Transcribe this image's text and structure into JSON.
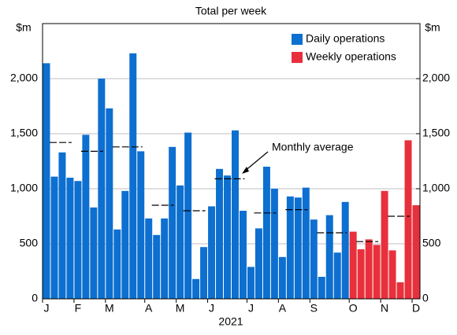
{
  "chart_data": {
    "type": "bar",
    "subtitle": "Total per week",
    "y_unit": "$m",
    "y2_unit": "$m",
    "x_label": "2021",
    "categories": [
      "J",
      null,
      null,
      null,
      "F",
      null,
      null,
      null,
      "M",
      null,
      null,
      null,
      null,
      "A",
      null,
      null,
      null,
      "M",
      null,
      null,
      null,
      "J",
      null,
      null,
      null,
      null,
      "J",
      null,
      null,
      null,
      "A",
      null,
      null,
      null,
      "S",
      null,
      null,
      null,
      null,
      "O",
      null,
      null,
      null,
      "N",
      null,
      null,
      null,
      "D"
    ],
    "series": [
      {
        "name": "Daily operations",
        "color": "#0d6fd0",
        "values": [
          2140,
          1110,
          1330,
          1100,
          1070,
          1490,
          830,
          2000,
          1730,
          630,
          980,
          2230,
          1340,
          730,
          580,
          730,
          1380,
          1030,
          1510,
          180,
          470,
          840,
          1180,
          1120,
          1530,
          800,
          290,
          640,
          1200,
          1000,
          380,
          930,
          920,
          1010,
          720,
          200,
          760,
          420,
          880,
          null,
          null,
          null,
          null,
          null,
          null,
          null,
          null,
          null
        ]
      },
      {
        "name": "Weekly operations",
        "color": "#e8303c",
        "values": [
          null,
          null,
          null,
          null,
          null,
          null,
          null,
          null,
          null,
          null,
          null,
          null,
          null,
          null,
          null,
          null,
          null,
          null,
          null,
          null,
          null,
          null,
          null,
          null,
          null,
          null,
          null,
          null,
          null,
          null,
          null,
          null,
          null,
          null,
          null,
          null,
          null,
          null,
          null,
          610,
          450,
          540,
          490,
          980,
          440,
          150,
          1440,
          850
        ]
      }
    ],
    "monthly_average": {
      "name": "Monthly average",
      "values": [
        1420,
        1340,
        1380,
        850,
        800,
        1090,
        780,
        810,
        600,
        520,
        750
      ]
    },
    "ylim": [
      0,
      2500
    ],
    "yticks": [
      0,
      500,
      {
        "value": 1000,
        "label": "1,000"
      },
      {
        "value": 1500,
        "label": "1,500"
      },
      {
        "value": 2000,
        "label": "2,000"
      }
    ],
    "grid": true,
    "legend": "top-right"
  }
}
